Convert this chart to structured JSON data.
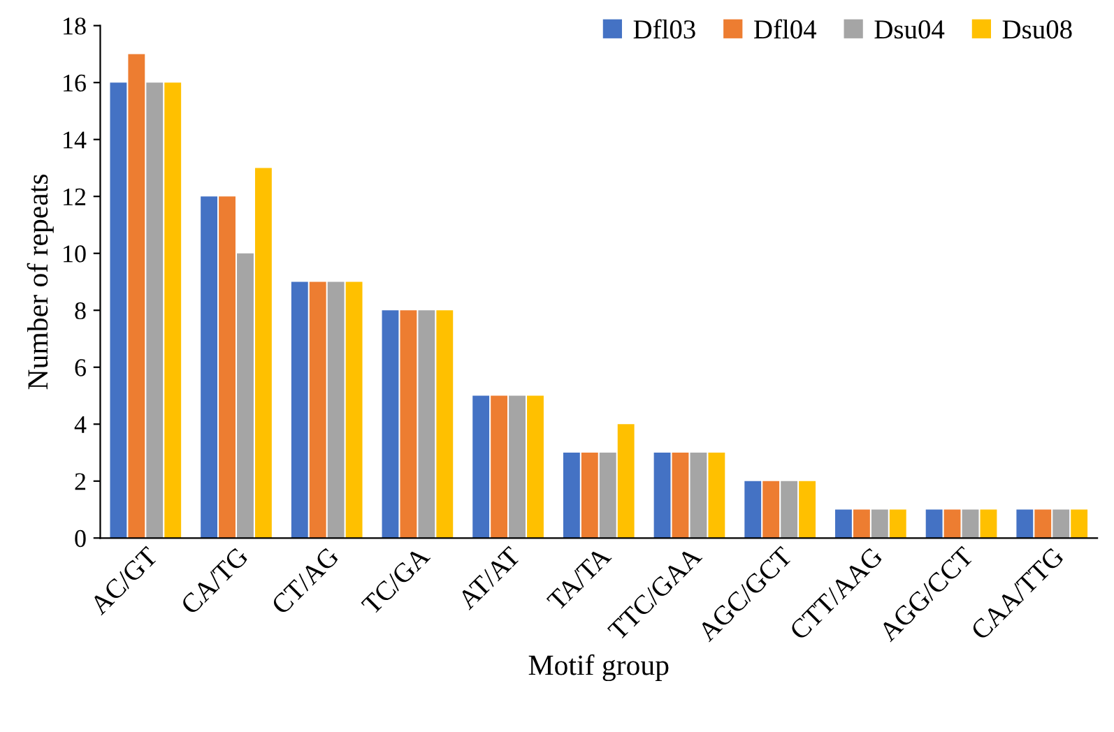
{
  "chart_data": {
    "type": "bar",
    "xlabel": "Motif group",
    "ylabel": "Number of repeats",
    "categories": [
      "AC/GT",
      "CA/TG",
      "CT/AG",
      "TC/GA",
      "AT/AT",
      "TA/TA",
      "TTC/GAA",
      "AGC/GCT",
      "CTT/AAG",
      "AGG/CCT",
      "CAA/TTG"
    ],
    "series": [
      {
        "name": "Dfl03",
        "color": "#4472c4",
        "values": [
          16,
          12,
          9,
          8,
          5,
          3,
          3,
          2,
          1,
          1,
          1
        ]
      },
      {
        "name": "Dfl04",
        "color": "#ed7d31",
        "values": [
          17,
          12,
          9,
          8,
          5,
          3,
          3,
          2,
          1,
          1,
          1
        ]
      },
      {
        "name": "Dsu04",
        "color": "#a5a5a5",
        "values": [
          16,
          10,
          9,
          8,
          5,
          3,
          3,
          2,
          1,
          1,
          1
        ]
      },
      {
        "name": "Dsu08",
        "color": "#ffc000",
        "values": [
          16,
          13,
          9,
          8,
          5,
          4,
          3,
          2,
          1,
          1,
          1
        ]
      }
    ],
    "ylim": [
      0,
      18
    ],
    "yticks": [
      0,
      2,
      4,
      6,
      8,
      10,
      12,
      14,
      16,
      18
    ],
    "grid": false,
    "legend": "top right"
  }
}
